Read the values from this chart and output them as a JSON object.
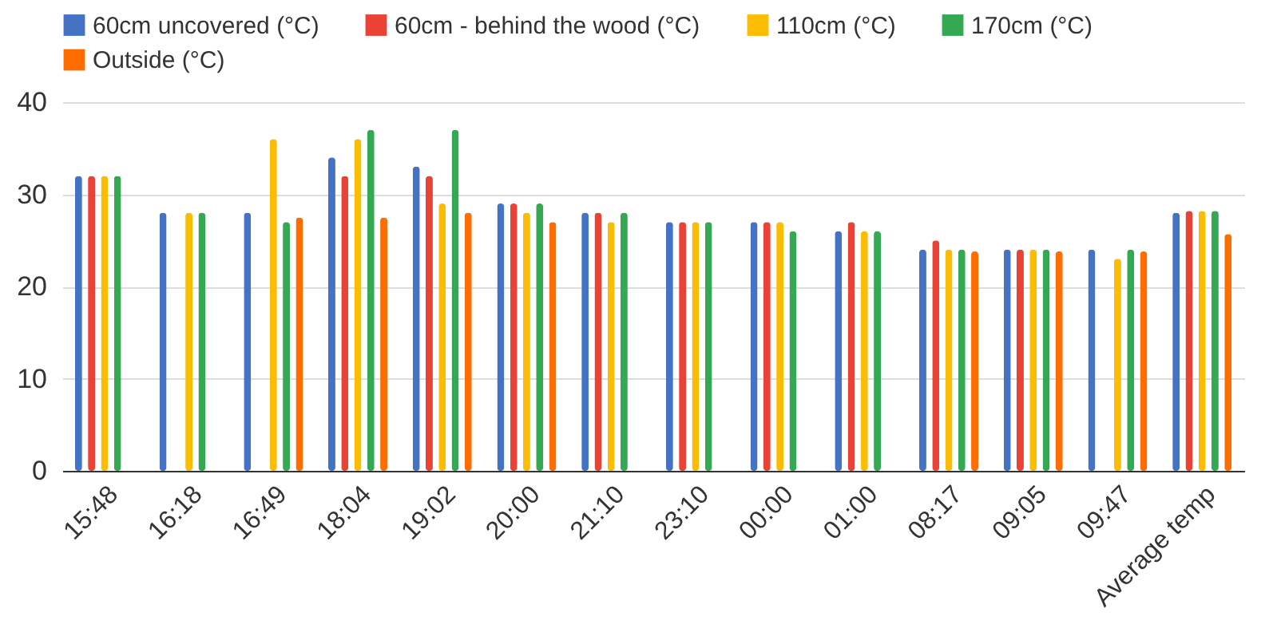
{
  "chart_data": {
    "type": "bar",
    "categories": [
      "15:48",
      "16:18",
      "16:49",
      "18:04",
      "19:02",
      "20:00",
      "21:10",
      "23:10",
      "00:00",
      "01:00",
      "08:17",
      "09:05",
      "09:47",
      "Average temp"
    ],
    "series": [
      {
        "name": "60cm uncovered (°C)",
        "color": "#4472c4",
        "values": [
          32,
          28,
          28,
          34,
          33,
          29,
          28,
          27,
          27,
          26,
          24,
          24,
          24,
          28
        ]
      },
      {
        "name": "60cm - behind the wood (°C)",
        "color": "#ea4335",
        "values": [
          32,
          null,
          null,
          32,
          32,
          29,
          28,
          27,
          27,
          27,
          25,
          24,
          null,
          28.2
        ]
      },
      {
        "name": "110cm (°C)",
        "color": "#fbbc04",
        "values": [
          32,
          28,
          36,
          36,
          29,
          28,
          27,
          27,
          27,
          26,
          24,
          24,
          23,
          28.2
        ]
      },
      {
        "name": "170cm (°C)",
        "color": "#34a853",
        "values": [
          32,
          28,
          27,
          37,
          37,
          29,
          28,
          27,
          26,
          26,
          24,
          24,
          24,
          28.2
        ]
      },
      {
        "name": "Outside (°C)",
        "color": "#ff6d01",
        "values": [
          null,
          null,
          27.5,
          27.5,
          28,
          27,
          null,
          null,
          null,
          null,
          23.8,
          23.8,
          23.8,
          25.7
        ]
      }
    ],
    "ylim": [
      0,
      40
    ],
    "yticks": [
      0,
      10,
      20,
      30,
      40
    ],
    "grid": "y",
    "legend": "top"
  }
}
